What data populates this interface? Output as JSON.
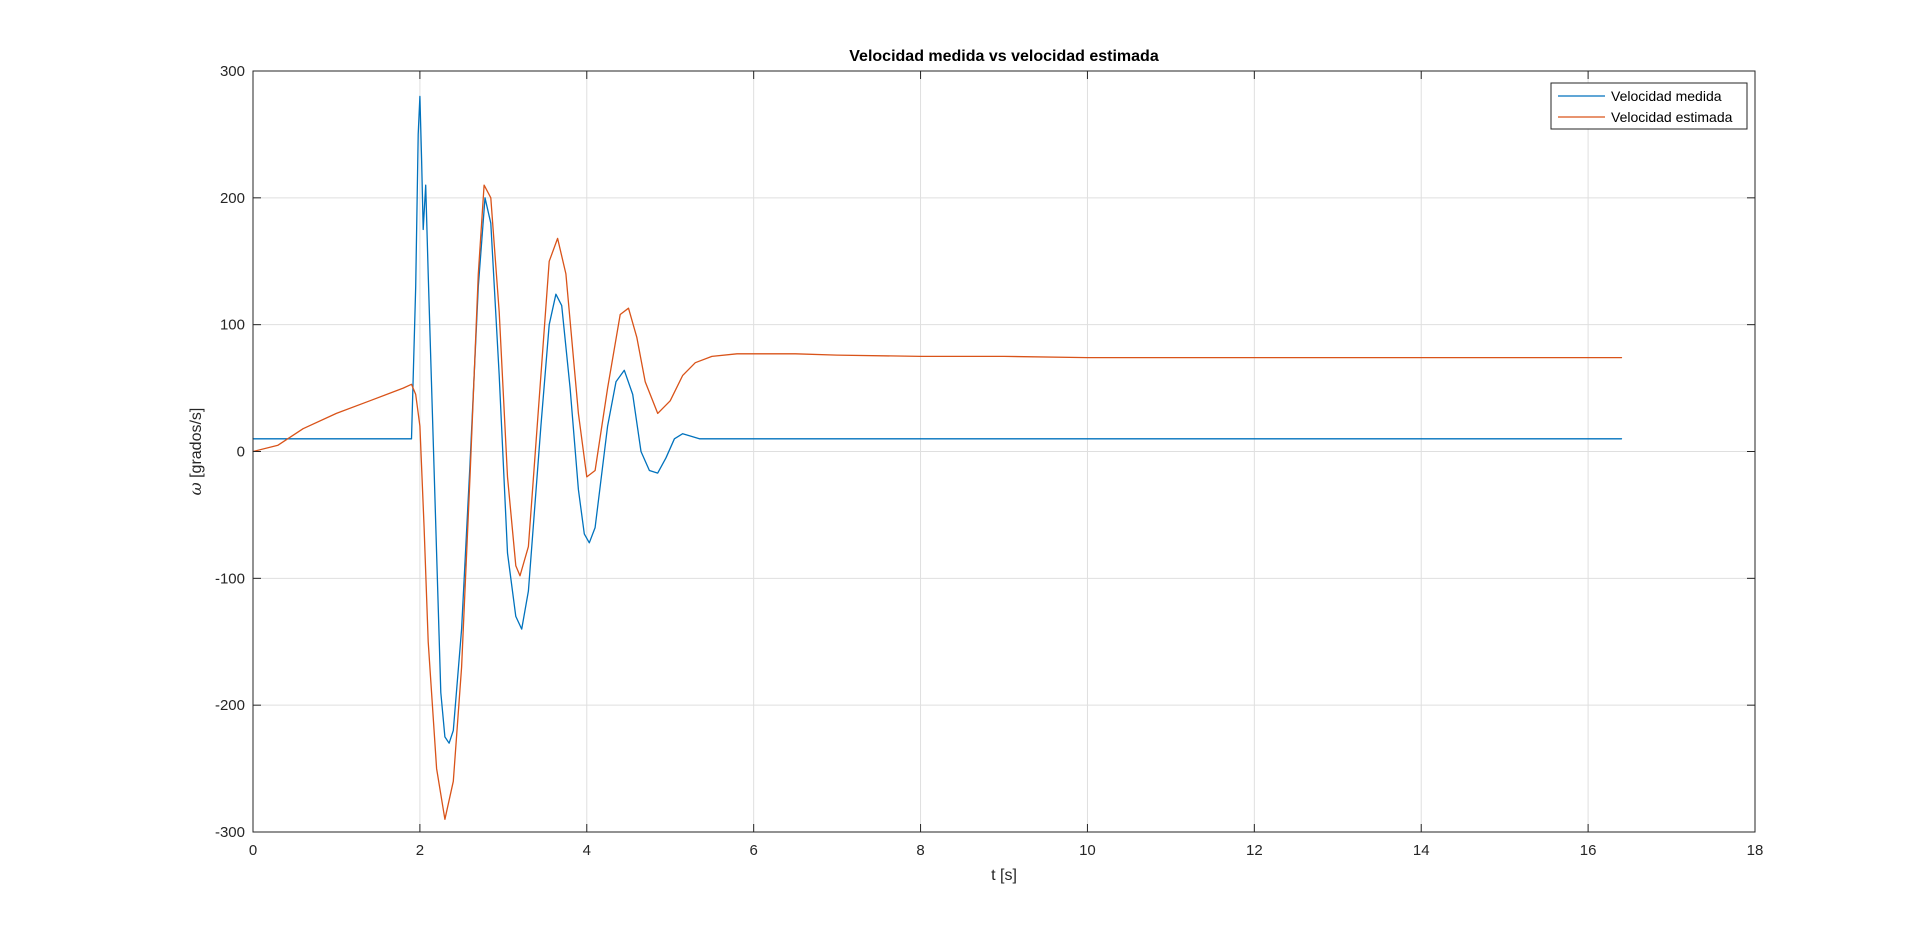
{
  "chart_data": {
    "type": "line",
    "title": "Velocidad medida vs velocidad estimada",
    "xlabel": "t [s]",
    "ylabel_symbol": "ω",
    "ylabel_unit": "[grados/s]",
    "xlim": [
      0,
      18
    ],
    "ylim": [
      -300,
      300
    ],
    "xticks": [
      0,
      2,
      4,
      6,
      8,
      10,
      12,
      14,
      16,
      18
    ],
    "yticks": [
      -300,
      -200,
      -100,
      0,
      100,
      200,
      300
    ],
    "xtick_labels": [
      "0",
      "2",
      "4",
      "6",
      "8",
      "10",
      "12",
      "14",
      "16",
      "18"
    ],
    "ytick_labels": [
      "-300",
      "-200",
      "-100",
      "0",
      "100",
      "200",
      "300"
    ],
    "grid": true,
    "legend_position": "top-right",
    "series": [
      {
        "name": "Velocidad medida",
        "color": "#0072BD",
        "x": [
          0,
          0.5,
          1.0,
          1.5,
          1.9,
          1.95,
          1.98,
          2.0,
          2.02,
          2.04,
          2.07,
          2.1,
          2.15,
          2.2,
          2.25,
          2.3,
          2.35,
          2.4,
          2.5,
          2.6,
          2.7,
          2.78,
          2.85,
          2.95,
          3.05,
          3.15,
          3.22,
          3.3,
          3.45,
          3.55,
          3.63,
          3.7,
          3.8,
          3.9,
          3.97,
          4.03,
          4.1,
          4.25,
          4.35,
          4.45,
          4.55,
          4.65,
          4.75,
          4.85,
          4.95,
          5.05,
          5.15,
          5.25,
          5.35,
          5.5,
          6,
          8,
          10,
          12,
          14,
          16.4
        ],
        "y": [
          10,
          10,
          10,
          10,
          10,
          130,
          250,
          280,
          230,
          175,
          210,
          140,
          30,
          -80,
          -190,
          -225,
          -230,
          -220,
          -140,
          -10,
          130,
          200,
          180,
          60,
          -80,
          -130,
          -140,
          -110,
          20,
          100,
          124,
          115,
          50,
          -30,
          -65,
          -72,
          -60,
          20,
          55,
          64,
          45,
          0,
          -15,
          -17,
          -5,
          10,
          14,
          12,
          10,
          10,
          10,
          10,
          10,
          10,
          10,
          10
        ]
      },
      {
        "name": "Velocidad estimada",
        "color": "#D95319",
        "x": [
          0,
          0.3,
          0.6,
          1.0,
          1.4,
          1.8,
          1.9,
          1.95,
          2.0,
          2.05,
          2.1,
          2.2,
          2.3,
          2.4,
          2.5,
          2.6,
          2.7,
          2.77,
          2.85,
          2.95,
          3.05,
          3.15,
          3.2,
          3.3,
          3.45,
          3.55,
          3.65,
          3.75,
          3.9,
          4.0,
          4.1,
          4.25,
          4.4,
          4.5,
          4.6,
          4.7,
          4.85,
          5.0,
          5.15,
          5.3,
          5.5,
          5.8,
          6.2,
          6.5,
          7,
          8,
          9,
          10,
          12,
          14,
          16.4
        ],
        "y": [
          0,
          5,
          18,
          30,
          40,
          50,
          53,
          45,
          20,
          -60,
          -150,
          -250,
          -290,
          -260,
          -170,
          -20,
          140,
          210,
          200,
          110,
          -20,
          -90,
          -98,
          -75,
          60,
          150,
          168,
          140,
          30,
          -20,
          -15,
          50,
          108,
          113,
          90,
          55,
          30,
          40,
          60,
          70,
          75,
          77,
          77,
          77,
          76,
          75,
          75,
          74,
          74,
          74,
          74
        ]
      }
    ]
  }
}
